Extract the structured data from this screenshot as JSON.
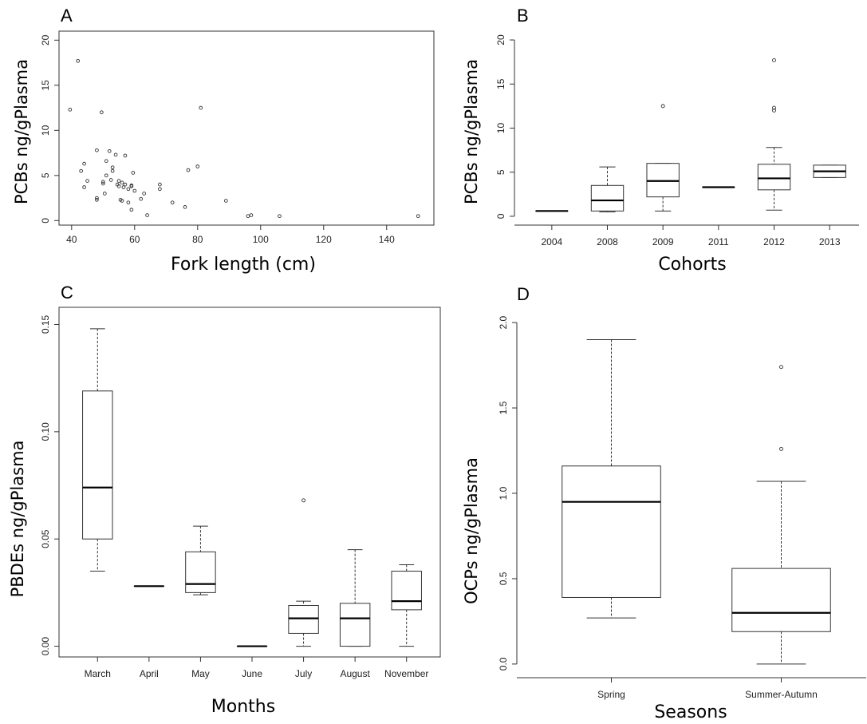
{
  "chart_data": [
    {
      "panel": "A",
      "type": "scatter",
      "xlabel": "Fork length (cm)",
      "ylabel": "PCBs ng/gPlasma",
      "xlim": [
        36,
        155
      ],
      "ylim": [
        -0.5,
        21
      ],
      "xticks": [
        40,
        60,
        80,
        100,
        120,
        140
      ],
      "yticks": [
        0,
        5,
        10,
        15,
        20
      ],
      "points": [
        [
          39.5,
          12.3
        ],
        [
          42,
          17.7
        ],
        [
          43,
          5.5
        ],
        [
          44,
          6.3
        ],
        [
          44,
          3.7
        ],
        [
          45,
          4.4
        ],
        [
          48,
          7.8
        ],
        [
          48,
          2.5
        ],
        [
          48,
          2.3
        ],
        [
          49.5,
          12.0
        ],
        [
          50,
          4.3
        ],
        [
          50,
          4.1
        ],
        [
          50.5,
          3.0
        ],
        [
          51,
          6.6
        ],
        [
          51,
          5.0
        ],
        [
          52,
          7.7
        ],
        [
          52.5,
          4.5
        ],
        [
          53,
          5.5
        ],
        [
          53,
          5.9
        ],
        [
          54,
          7.3
        ],
        [
          54.5,
          4.0
        ],
        [
          55,
          4.4
        ],
        [
          55,
          3.8
        ],
        [
          55.5,
          2.3
        ],
        [
          56,
          2.2
        ],
        [
          56,
          4.2
        ],
        [
          56.5,
          3.7
        ],
        [
          57,
          7.2
        ],
        [
          57,
          4.0
        ],
        [
          58,
          2.0
        ],
        [
          58,
          3.5
        ],
        [
          59,
          1.2
        ],
        [
          59,
          3.8
        ],
        [
          59,
          3.9
        ],
        [
          59.5,
          5.3
        ],
        [
          60,
          3.3
        ],
        [
          62,
          2.4
        ],
        [
          63,
          3.0
        ],
        [
          64,
          0.6
        ],
        [
          68,
          3.5
        ],
        [
          68,
          4.0
        ],
        [
          72,
          2.0
        ],
        [
          76,
          1.5
        ],
        [
          77,
          5.6
        ],
        [
          80,
          6.0
        ],
        [
          81,
          12.5
        ],
        [
          89,
          2.2
        ],
        [
          96,
          0.5
        ],
        [
          97,
          0.6
        ],
        [
          106,
          0.5
        ],
        [
          150,
          0.5
        ]
      ]
    },
    {
      "panel": "B",
      "type": "box",
      "xlabel": "Cohorts",
      "ylabel": "PCBs ng/gPlasma",
      "ylim": [
        -1,
        21
      ],
      "yticks": [
        0,
        5,
        10,
        15,
        20
      ],
      "categories": [
        "2004",
        "2008",
        "2009",
        "2011",
        "2012",
        "2013"
      ],
      "boxes": [
        {
          "min": 0.6,
          "q1": 0.6,
          "median": 0.6,
          "q3": 0.6,
          "max": 0.6,
          "outliers": []
        },
        {
          "min": 0.5,
          "q1": 0.6,
          "median": 1.8,
          "q3": 3.5,
          "max": 5.6,
          "outliers": []
        },
        {
          "min": 0.6,
          "q1": 2.2,
          "median": 4.0,
          "q3": 6.0,
          "max": 6.0,
          "outliers": [
            12.5
          ]
        },
        {
          "min": 3.3,
          "q1": 3.3,
          "median": 3.3,
          "q3": 3.3,
          "max": 3.3,
          "outliers": []
        },
        {
          "min": 0.7,
          "q1": 3.0,
          "median": 4.3,
          "q3": 5.9,
          "max": 7.8,
          "outliers": [
            12.0,
            12.3,
            17.7
          ]
        },
        {
          "min": 4.4,
          "q1": 4.4,
          "median": 5.1,
          "q3": 5.8,
          "max": 5.8,
          "outliers": []
        }
      ]
    },
    {
      "panel": "C",
      "type": "box",
      "xlabel": "Months",
      "ylabel": "PBDEs ng/gPlasma",
      "ylim": [
        -0.005,
        0.158
      ],
      "yticks": [
        0.0,
        0.05,
        0.1,
        0.15
      ],
      "ytick_labels": [
        "0.00",
        "0.05",
        "0.10",
        "0.15"
      ],
      "categories": [
        "March",
        "April",
        "May",
        "June",
        "July",
        "August",
        "November"
      ],
      "boxes": [
        {
          "min": 0.035,
          "q1": 0.05,
          "median": 0.074,
          "q3": 0.119,
          "max": 0.148,
          "outliers": []
        },
        {
          "min": 0.028,
          "q1": 0.028,
          "median": 0.028,
          "q3": 0.028,
          "max": 0.028,
          "outliers": []
        },
        {
          "min": 0.024,
          "q1": 0.025,
          "median": 0.029,
          "q3": 0.044,
          "max": 0.056,
          "outliers": []
        },
        {
          "min": 0.0,
          "q1": 0.0,
          "median": 0.0,
          "q3": 0.0,
          "max": 0.0,
          "outliers": []
        },
        {
          "min": 0.0,
          "q1": 0.006,
          "median": 0.013,
          "q3": 0.019,
          "max": 0.021,
          "outliers": [
            0.068
          ]
        },
        {
          "min": 0.0,
          "q1": 0.0,
          "median": 0.013,
          "q3": 0.02,
          "max": 0.045,
          "outliers": []
        },
        {
          "min": 0.0,
          "q1": 0.017,
          "median": 0.021,
          "q3": 0.035,
          "max": 0.038,
          "outliers": []
        }
      ]
    },
    {
      "panel": "D",
      "type": "box",
      "xlabel": "Seasons",
      "ylabel": "OCPs ng/gPlasma",
      "ylim": [
        -0.08,
        2.08
      ],
      "yticks": [
        0.0,
        0.5,
        1.0,
        1.5,
        2.0
      ],
      "ytick_labels": [
        "0.0",
        "0.5",
        "1.0",
        "1.5",
        "2.0"
      ],
      "categories": [
        "Spring",
        "Summer-Autumn"
      ],
      "boxes": [
        {
          "min": 0.27,
          "q1": 0.39,
          "median": 0.95,
          "q3": 1.16,
          "max": 1.9,
          "outliers": []
        },
        {
          "min": 0.0,
          "q1": 0.19,
          "median": 0.3,
          "q3": 0.56,
          "max": 1.07,
          "outliers": [
            1.26,
            1.74
          ]
        }
      ]
    }
  ]
}
